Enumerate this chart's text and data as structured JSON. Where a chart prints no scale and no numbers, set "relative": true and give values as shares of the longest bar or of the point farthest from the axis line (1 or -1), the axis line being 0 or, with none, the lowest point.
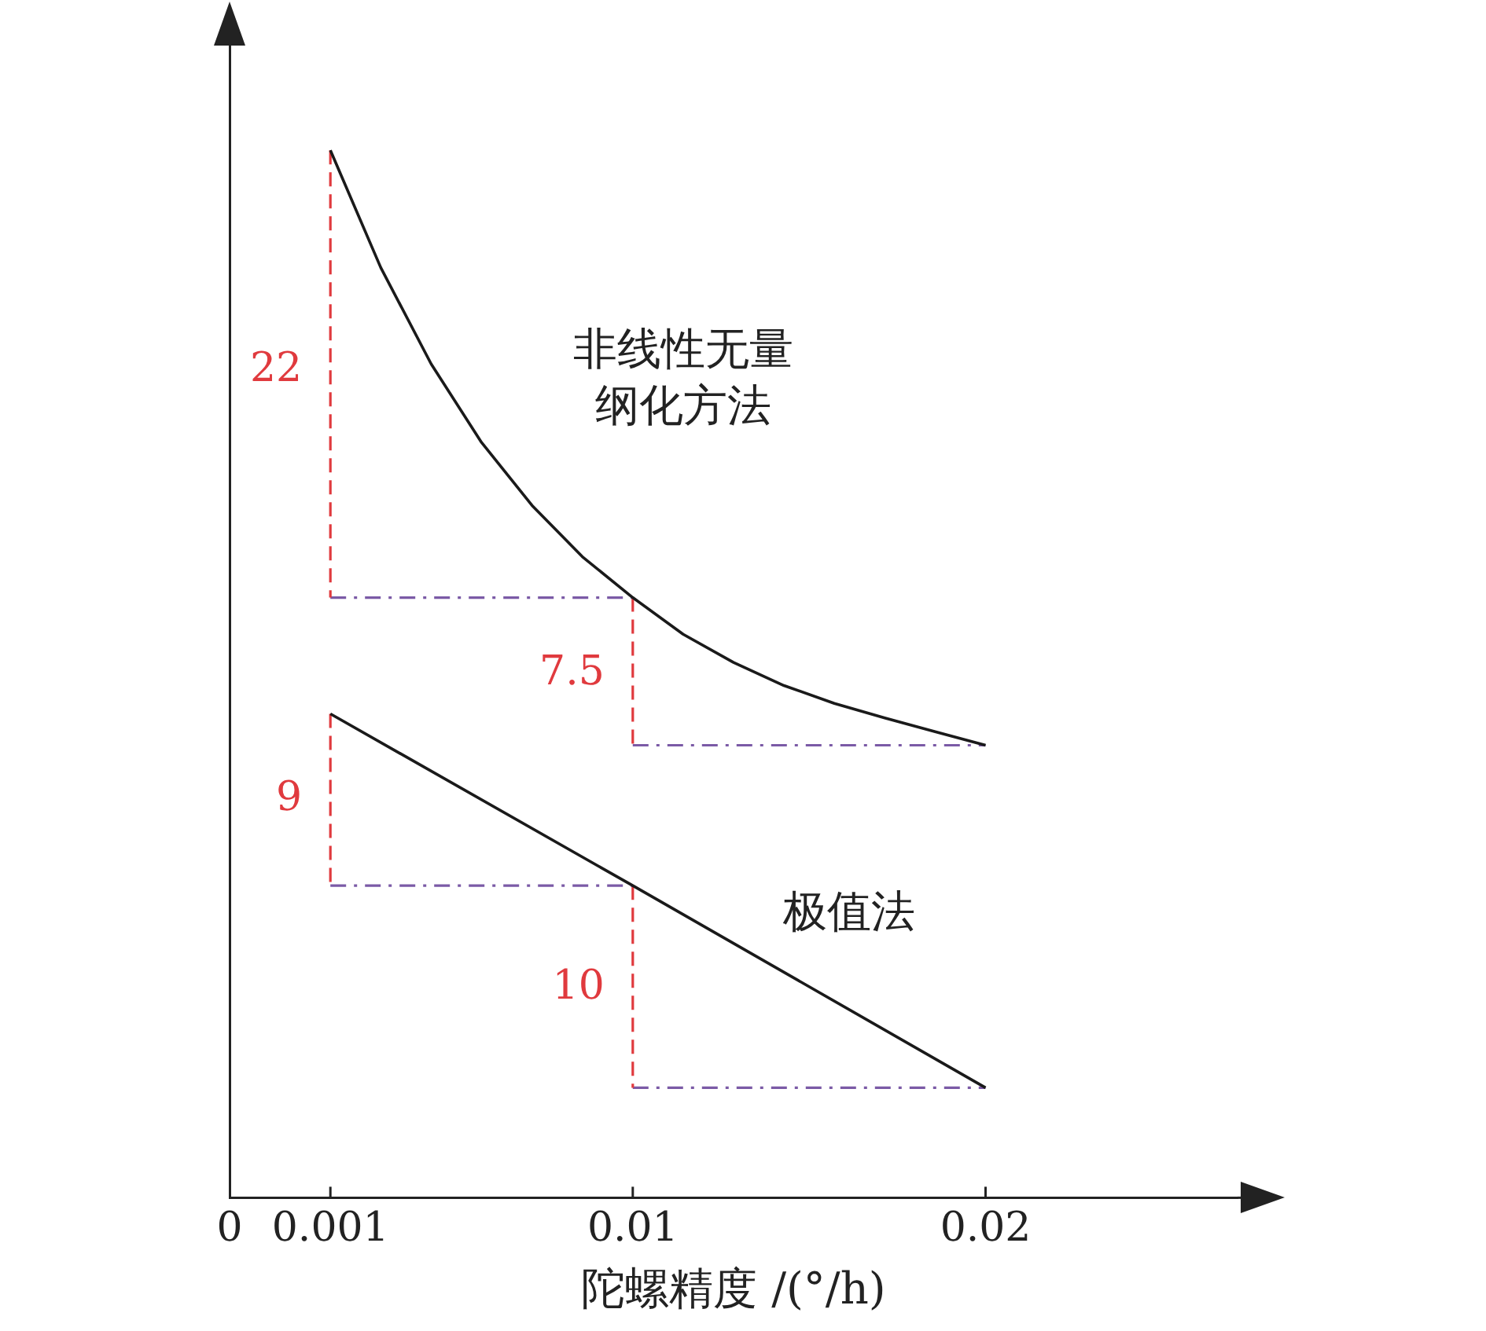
{
  "chart_data": {
    "type": "line",
    "relative": true,
    "xlabel": "陀螺精度 /(°/h)",
    "categories": [
      "0",
      null,
      "0.001",
      null,
      null,
      null,
      null,
      null,
      "0.01",
      null,
      null,
      null,
      null,
      null,
      null,
      "0.02",
      null,
      null,
      null,
      null,
      null
    ],
    "series": [
      {
        "name": "非线性无量纲化方法",
        "color": "#1a1a1a",
        "values": [
          null,
          null,
          1.0,
          0.888,
          0.796,
          0.721,
          0.661,
          0.612,
          0.573,
          0.538,
          0.511,
          0.489,
          0.472,
          0.458,
          0.445,
          0.432,
          null,
          null,
          null,
          null,
          null
        ]
      },
      {
        "name": "极值法",
        "color": "#1a1a1a",
        "values": [
          null,
          null,
          0.462,
          null,
          null,
          null,
          null,
          null,
          0.298,
          null,
          null,
          null,
          null,
          null,
          null,
          0.105,
          null,
          null,
          null,
          null,
          null
        ]
      },
      {
        "color": "#e03a3e",
        "line_style": "dashed",
        "x": [
          "0.001",
          "0.001"
        ],
        "values": [
          1.0,
          0.573
        ]
      },
      {
        "color": "#7b5aa6",
        "line_style": "dashed",
        "x": [
          "0.001",
          "0.01"
        ],
        "values": [
          0.573,
          0.573
        ]
      },
      {
        "color": "#e03a3e",
        "line_style": "dashed",
        "x": [
          "0.01",
          "0.01"
        ],
        "values": [
          0.573,
          0.432
        ]
      },
      {
        "color": "#7b5aa6",
        "line_style": "dashed",
        "x": [
          "0.01",
          "0.02"
        ],
        "values": [
          0.432,
          0.432
        ]
      },
      {
        "color": "#e03a3e",
        "line_style": "dashed",
        "x": [
          "0.001",
          "0.001"
        ],
        "values": [
          0.462,
          0.298
        ]
      },
      {
        "color": "#7b5aa6",
        "line_style": "dashed",
        "x": [
          "0.001",
          "0.01"
        ],
        "values": [
          0.298,
          0.298
        ]
      },
      {
        "color": "#e03a3e",
        "line_style": "dashed",
        "x": [
          "0.01",
          "0.01"
        ],
        "values": [
          0.298,
          0.105
        ]
      },
      {
        "color": "#7b5aa6",
        "line_style": "dashed",
        "x": [
          "0.01",
          "0.02"
        ],
        "values": [
          0.105,
          0.105
        ]
      }
    ],
    "annotations": [
      {
        "text": "22",
        "x": "0.001",
        "y": 0.79
      },
      {
        "text": "7.5",
        "x": "0.01",
        "y": 0.5
      },
      {
        "text": "9",
        "x": "0.001",
        "y": 0.38
      },
      {
        "text": "10",
        "x": "0.01",
        "y": 0.2
      }
    ],
    "marker": "none",
    "legend": false,
    "grid": false
  }
}
